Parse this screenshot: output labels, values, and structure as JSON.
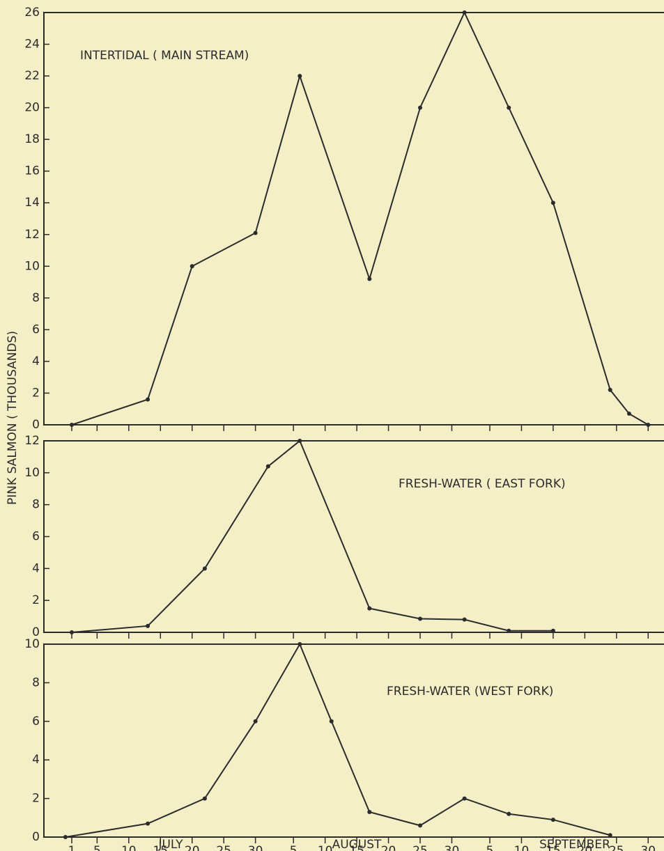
{
  "ylabel": "PINK SALMON ( THOUSANDS)",
  "months": [
    "JULY",
    "AUGUST",
    "SEPTEMBER"
  ],
  "chart_data": [
    {
      "type": "line",
      "title": "INTERTIDAL ( MAIN STREAM)",
      "color": "#2b2b2b",
      "x": [
        1,
        13,
        20,
        30,
        37,
        48,
        56,
        63,
        70,
        77,
        86,
        89,
        92
      ],
      "values": [
        0,
        1.6,
        10,
        12.1,
        22,
        9.2,
        20,
        26,
        20,
        14,
        2.2,
        0.7,
        0
      ],
      "xlim": [
        -3.4,
        94.5
      ],
      "ylim": [
        0,
        26
      ],
      "yticks": [
        0,
        2,
        4,
        6,
        8,
        10,
        12,
        14,
        16,
        18,
        20,
        22,
        24,
        26
      ]
    },
    {
      "type": "line",
      "title": "FRESH-WATER ( EAST FORK)",
      "color": "#2b2b2b",
      "x": [
        1,
        13,
        22,
        32,
        37,
        48,
        56,
        63,
        70,
        77
      ],
      "values": [
        0,
        0.4,
        4,
        10.4,
        12,
        1.5,
        0.85,
        0.8,
        0.1,
        0.1
      ],
      "xlim": [
        -3.4,
        94.5
      ],
      "ylim": [
        0,
        12
      ],
      "yticks": [
        0,
        2,
        4,
        6,
        8,
        10,
        12
      ]
    },
    {
      "type": "line",
      "title": "FRESH-WATER (WEST FORK)",
      "color": "#2b2b2b",
      "x": [
        0,
        13,
        22,
        30,
        37,
        42,
        48,
        56,
        63,
        70,
        77,
        86
      ],
      "values": [
        0,
        0.7,
        2,
        6,
        10,
        6,
        1.3,
        0.6,
        2,
        1.2,
        0.9,
        0.1
      ],
      "xlim": [
        -3.4,
        94.5
      ],
      "ylim": [
        0,
        10
      ],
      "yticks": [
        0,
        2,
        4,
        6,
        8,
        10
      ],
      "xticks": [
        1,
        5,
        10,
        15,
        20,
        25,
        30,
        {
          "value": 36,
          "label": "5"
        },
        {
          "value": 41,
          "label": "10"
        },
        {
          "value": 46,
          "label": "15"
        },
        {
          "value": 51,
          "label": "20"
        },
        {
          "value": 56,
          "label": "25"
        },
        {
          "value": 61,
          "label": "30"
        },
        {
          "value": 67,
          "label": "5"
        },
        {
          "value": 72,
          "label": "10"
        },
        {
          "value": 77,
          "label": "15"
        },
        {
          "value": 82,
          "label": "20"
        },
        {
          "value": 87,
          "label": "25"
        },
        {
          "value": 92,
          "label": "30"
        }
      ]
    }
  ]
}
